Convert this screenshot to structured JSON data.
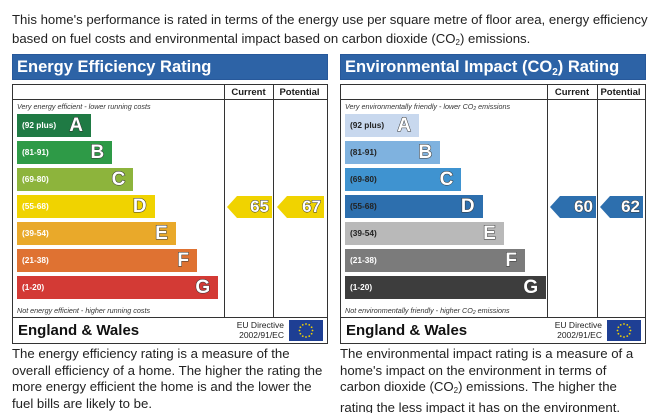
{
  "intro": {
    "line1": "This home's performance is rated in terms of the energy use per square metre of floor area, energy efficiency",
    "line2_prefix": "based on fuel costs and environmental impact based on carbon dioxide (CO",
    "line2_sub": "2",
    "line2_suffix": ") emissions."
  },
  "energy": {
    "title": "Energy Efficiency Rating",
    "col_current": "Current",
    "col_potential": "Potential",
    "top_caption": "Very energy efficient - lower running costs",
    "bottom_caption": "Not energy efficient - higher running costs",
    "bands": [
      {
        "range": "(92 plus)",
        "letter": "A",
        "color": "#1f7a44"
      },
      {
        "range": "(81-91)",
        "letter": "B",
        "color": "#2e9a47"
      },
      {
        "range": "(69-80)",
        "letter": "C",
        "color": "#8db43c"
      },
      {
        "range": "(55-68)",
        "letter": "D",
        "color": "#f0d300"
      },
      {
        "range": "(39-54)",
        "letter": "E",
        "color": "#e9a92a"
      },
      {
        "range": "(21-38)",
        "letter": "F",
        "color": "#df7232"
      },
      {
        "range": "(1-20)",
        "letter": "G",
        "color": "#d33a35"
      }
    ],
    "current": {
      "value": "65",
      "band": "D",
      "color": "#f0d300"
    },
    "potential": {
      "value": "67",
      "band": "D",
      "color": "#f0d300"
    },
    "footer_country": "England & Wales",
    "footer_directive_1": "EU Directive",
    "footer_directive_2": "2002/91/EC",
    "description": "The energy efficiency rating is a measure of the overall efficiency of a home. The higher the rating the more energy efficient the home is and the lower the fuel bills are likely to be."
  },
  "environment": {
    "title_prefix": "Environmental Impact (CO",
    "title_sub": "2",
    "title_suffix": ") Rating",
    "col_current": "Current",
    "col_potential": "Potential",
    "top_caption_prefix": "Very environmentally friendly - lower CO",
    "top_caption_sub": "2",
    "top_caption_suffix": " emissions",
    "bottom_caption_prefix": "Not environmentally friendly - higher CO",
    "bottom_caption_sub": "2",
    "bottom_caption_suffix": " emissions",
    "bands": [
      {
        "range": "(92 plus)",
        "letter": "A",
        "color": "#c8d8ee",
        "text_color": "#222"
      },
      {
        "range": "(81-91)",
        "letter": "B",
        "color": "#7fb2df",
        "text_color": "#222"
      },
      {
        "range": "(69-80)",
        "letter": "C",
        "color": "#3f93d0",
        "text_color": "#222"
      },
      {
        "range": "(55-68)",
        "letter": "D",
        "color": "#2d6fae",
        "text_color": "#222"
      },
      {
        "range": "(39-54)",
        "letter": "E",
        "color": "#b9b9b9",
        "text_color": "#222"
      },
      {
        "range": "(21-38)",
        "letter": "F",
        "color": "#7b7b7b",
        "text_color": "#fff"
      },
      {
        "range": "(1-20)",
        "letter": "G",
        "color": "#3d3d3d",
        "text_color": "#fff"
      }
    ],
    "current": {
      "value": "60",
      "band": "D",
      "color": "#2d6fae"
    },
    "potential": {
      "value": "62",
      "band": "D",
      "color": "#2d6fae"
    },
    "footer_country": "England & Wales",
    "footer_directive_1": "EU Directive",
    "footer_directive_2": "2002/91/EC",
    "description_1": "The environmental impact rating is a measure of a home's impact on the environment in terms of carbon dioxide (CO",
    "description_sub": "2",
    "description_2": ") emissions. The higher the rating the less impact it has on the environment."
  }
}
